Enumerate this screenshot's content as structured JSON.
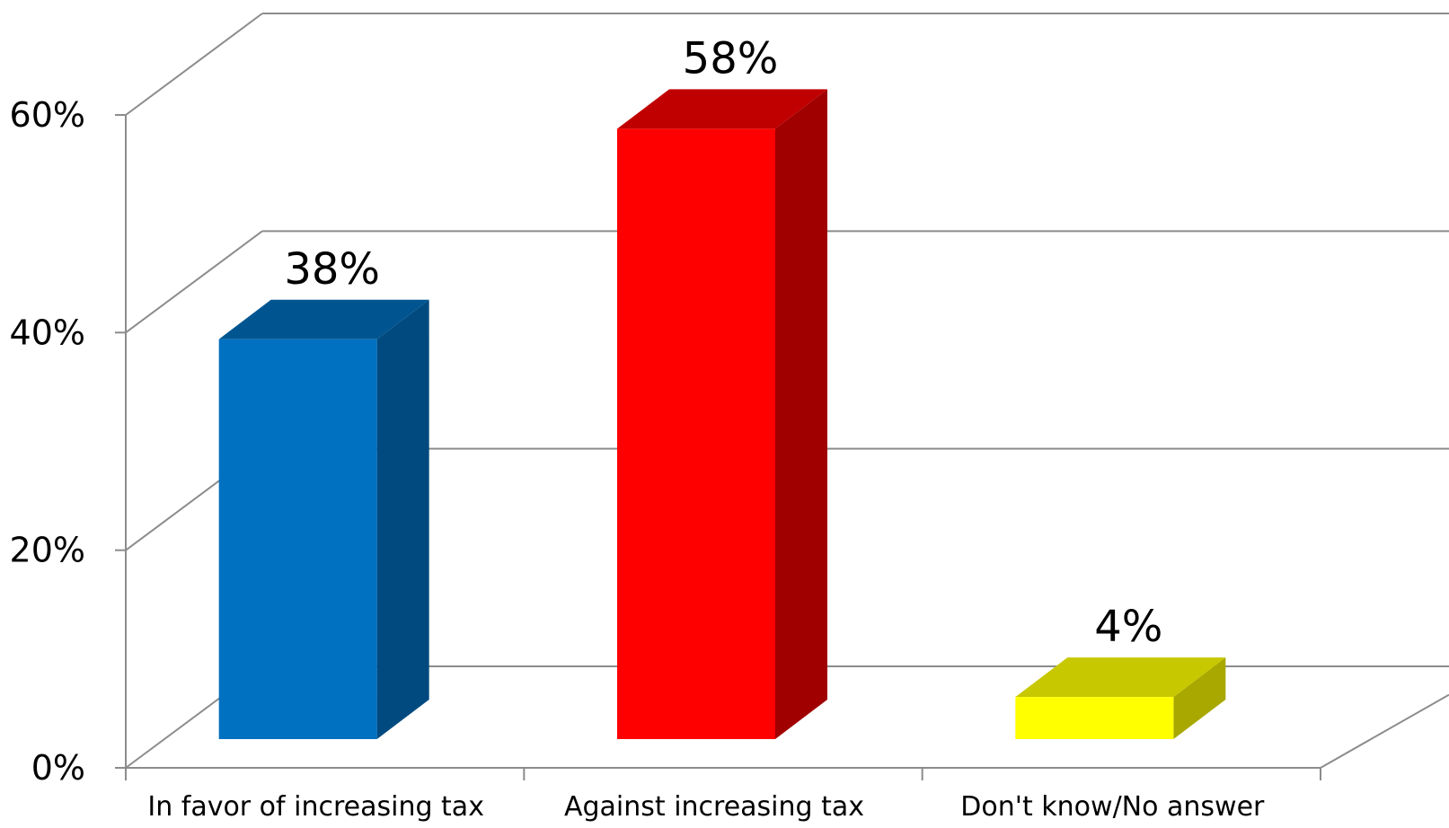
{
  "chart_data": {
    "type": "bar",
    "style": "3d-column",
    "categories": [
      "In favor of increasing tax",
      "Against increasing tax",
      "Don't know/No answer"
    ],
    "values": [
      38,
      58,
      4
    ],
    "data_labels": [
      "38%",
      "58%",
      "4%"
    ],
    "ylim": [
      0,
      60
    ],
    "y_ticks": [
      0,
      20,
      40,
      60
    ],
    "y_tick_labels": [
      "0%",
      "20%",
      "40%",
      "60%"
    ],
    "grid": true,
    "legend": "none",
    "title": "",
    "xlabel": "",
    "ylabel": "",
    "colors": {
      "bar_fronts": [
        "#0070C0",
        "#FF0000",
        "#FFFF00"
      ],
      "bar_tops": [
        "#005591",
        "#C00000",
        "#C8C800"
      ],
      "bar_sides": [
        "#004A7F",
        "#A00000",
        "#A8A800"
      ],
      "gridline": "#8C8C8C"
    }
  }
}
